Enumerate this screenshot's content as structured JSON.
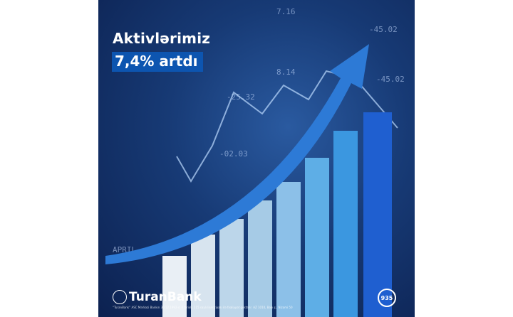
{
  "headline": "Aktivlərimiz",
  "subheadline": "7,4% artdı",
  "brand": "TuranBank",
  "legal_text": "“TuranBank” ASC Mərkəzi Bankın 30.12.1992-ci il tarixli, 115 saylı lisenziyası ilə fəaliyyət göstərir. AZ 1010, Bakı ş., Nizami 50",
  "hotline": "935",
  "colors": {
    "accent": "#0d55b0",
    "background": "#173a75"
  }
}
